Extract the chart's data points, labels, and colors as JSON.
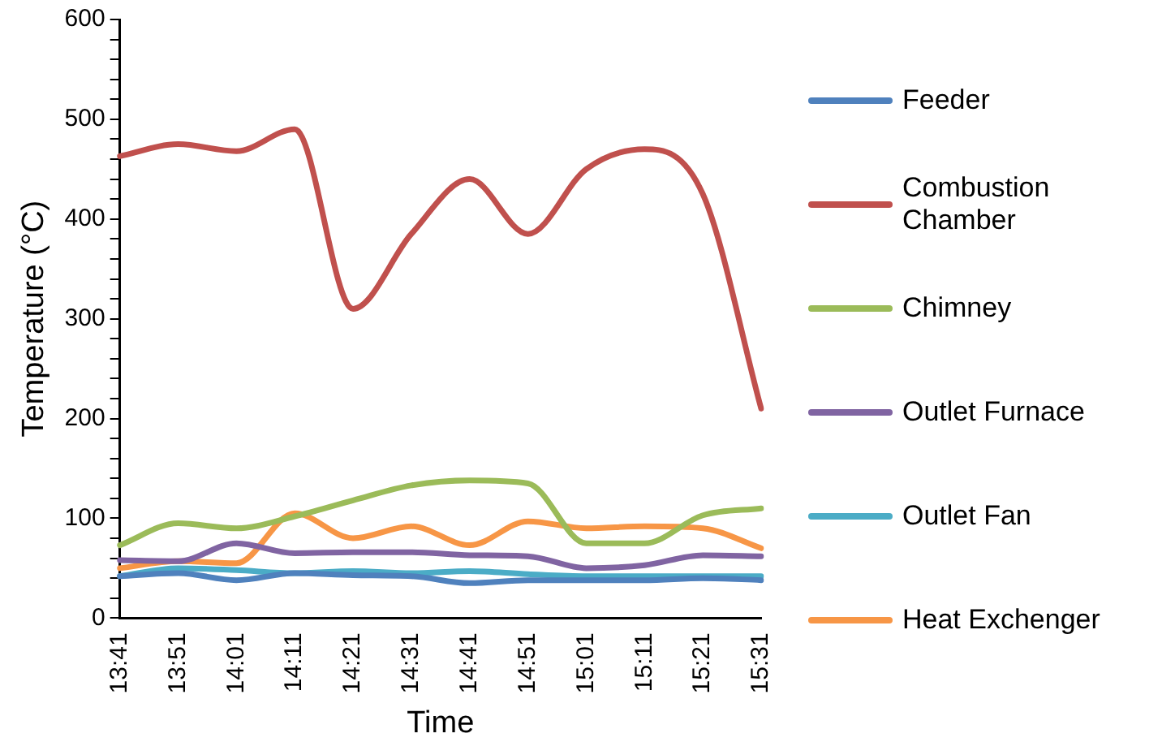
{
  "chart_data": {
    "type": "line",
    "xlabel": "Time",
    "ylabel": "Temperature (°C)",
    "categories": [
      "13:41",
      "13:51",
      "14:01",
      "14:11",
      "14:21",
      "14:31",
      "14:41",
      "14:51",
      "15:01",
      "15:11",
      "15:21",
      "15:31"
    ],
    "series": [
      {
        "name": "Feeder",
        "color": "#4f81bd",
        "values": [
          42,
          45,
          38,
          45,
          43,
          42,
          35,
          38,
          38,
          38,
          40,
          38
        ]
      },
      {
        "name": "Combustion Chamber",
        "color": "#c0504d",
        "values": [
          463,
          475,
          468,
          490,
          310,
          385,
          440,
          385,
          450,
          470,
          425,
          210
        ]
      },
      {
        "name": "Chimney",
        "color": "#9bbb59",
        "values": [
          73,
          95,
          90,
          102,
          118,
          133,
          138,
          135,
          75,
          75,
          103,
          110
        ]
      },
      {
        "name": "Outlet Furnace",
        "color": "#8064a2",
        "values": [
          58,
          57,
          75,
          65,
          66,
          66,
          63,
          62,
          50,
          53,
          63,
          62
        ]
      },
      {
        "name": "Outlet Fan",
        "color": "#4bacc6",
        "values": [
          42,
          50,
          48,
          45,
          47,
          45,
          47,
          44,
          42,
          42,
          42,
          42
        ]
      },
      {
        "name": "Heat Exchenger",
        "color": "#f79646",
        "values": [
          50,
          57,
          55,
          105,
          80,
          92,
          73,
          97,
          90,
          92,
          90,
          70
        ]
      }
    ],
    "ylim": [
      0,
      600
    ],
    "yticks": [
      0,
      {
        "value": 20,
        "label": null
      },
      {
        "value": 40,
        "label": null
      },
      {
        "value": 60,
        "label": null
      },
      {
        "value": 80,
        "label": null
      },
      100,
      {
        "value": 120,
        "label": null
      },
      {
        "value": 140,
        "label": null
      },
      {
        "value": 160,
        "label": null
      },
      {
        "value": 180,
        "label": null
      },
      200,
      {
        "value": 220,
        "label": null
      },
      {
        "value": 240,
        "label": null
      },
      {
        "value": 260,
        "label": null
      },
      {
        "value": 280,
        "label": null
      },
      300,
      {
        "value": 320,
        "label": null
      },
      {
        "value": 340,
        "label": null
      },
      {
        "value": 360,
        "label": null
      },
      {
        "value": 380,
        "label": null
      },
      400,
      {
        "value": 420,
        "label": null
      },
      {
        "value": 440,
        "label": null
      },
      {
        "value": 460,
        "label": null
      },
      {
        "value": 480,
        "label": null
      },
      500,
      {
        "value": 520,
        "label": null
      },
      {
        "value": 540,
        "label": null
      },
      {
        "value": 560,
        "label": null
      },
      {
        "value": 580,
        "label": null
      },
      600
    ],
    "grid": false,
    "legend": "right",
    "marker": "none",
    "line_style": "solid"
  }
}
